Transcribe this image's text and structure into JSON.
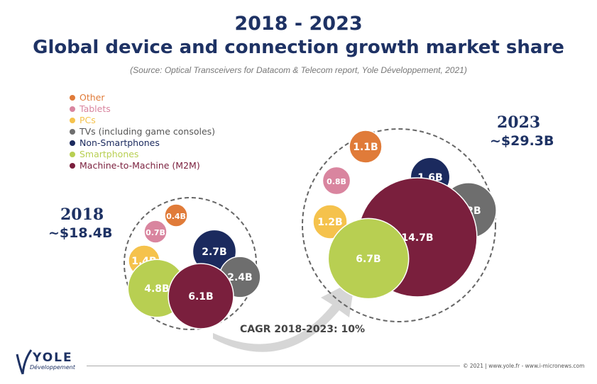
{
  "chart_data": {
    "type": "bubble",
    "title": "2018 - 2023",
    "subtitle": "Global device and connection growth market share",
    "source": "(Source: Optical Transceivers for Datacom & Telecom report, Yole Développement, 2021)",
    "legend": [
      {
        "name": "Other",
        "color": "#e07b39"
      },
      {
        "name": "Tablets",
        "color": "#d9859f"
      },
      {
        "name": "PCs",
        "color": "#f5c24c"
      },
      {
        "name": "TVs (including game consoles)",
        "color": "#6e6e6e"
      },
      {
        "name": "Non-Smartphones",
        "color": "#1b2a5e"
      },
      {
        "name": "Smartphones",
        "color": "#b8cf52"
      },
      {
        "name": "Machine-to-Machine (M2M)",
        "color": "#7a1f3d"
      }
    ],
    "groups": [
      {
        "year": "2018",
        "total": "~$18.4B",
        "values": [
          {
            "cat": "Other",
            "label": "0.4B",
            "value": 0.4
          },
          {
            "cat": "Tablets",
            "label": "0.7B",
            "value": 0.7
          },
          {
            "cat": "PCs",
            "label": "1.4B",
            "value": 1.4
          },
          {
            "cat": "Non-Smartphones",
            "label": "2.7B",
            "value": 2.7
          },
          {
            "cat": "TVs (including game consoles)",
            "label": "2.4B",
            "value": 2.4
          },
          {
            "cat": "Smartphones",
            "label": "4.8B",
            "value": 4.8
          },
          {
            "cat": "Machine-to-Machine (M2M)",
            "label": "6.1B",
            "value": 6.1
          }
        ]
      },
      {
        "year": "2023",
        "total": "~$29.3B",
        "values": [
          {
            "cat": "Other",
            "label": "1.1B",
            "value": 1.1
          },
          {
            "cat": "Tablets",
            "label": "0.8B",
            "value": 0.8
          },
          {
            "cat": "Non-Smartphones",
            "label": "1.6B",
            "value": 1.6
          },
          {
            "cat": "TVs (including game consoles)",
            "label": "3.2B",
            "value": 3.2
          },
          {
            "cat": "PCs",
            "label": "1.2B",
            "value": 1.2
          },
          {
            "cat": "Machine-to-Machine (M2M)",
            "label": "14.7B",
            "value": 14.7
          },
          {
            "cat": "Smartphones",
            "label": "6.7B",
            "value": 6.7
          }
        ]
      }
    ],
    "annotation": "CAGR 2018-2023: 10%"
  },
  "footer": {
    "logo": "YOLE Développement",
    "copyright": "© 2021 | www.yole.fr - www.i-micronews.com"
  }
}
